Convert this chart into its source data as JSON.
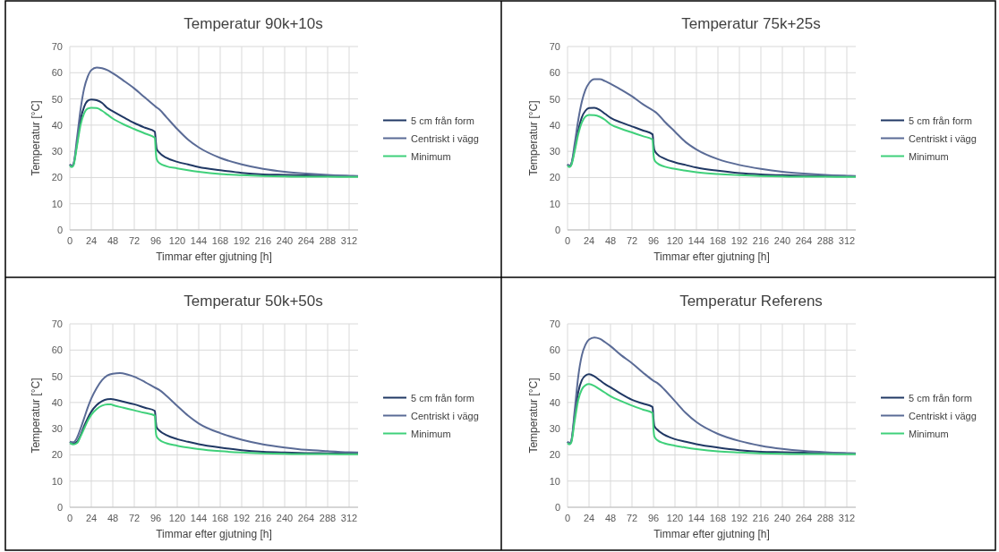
{
  "chart_data": [
    {
      "type": "line",
      "title": "Temperatur 90k+10s",
      "xlabel": "Timmar  efter gjutning  [h]",
      "ylabel": "Temperatur [°C]",
      "xlim": [
        0,
        322
      ],
      "xticks": [
        0,
        24,
        48,
        72,
        96,
        120,
        144,
        168,
        192,
        216,
        240,
        264,
        288,
        312
      ],
      "ylim": [
        0,
        70
      ],
      "yticks": [
        0,
        10,
        20,
        30,
        40,
        50,
        60,
        70
      ],
      "grid": true,
      "legend": "right",
      "series": [
        {
          "name": "5 cm från form",
          "color": "#203864",
          "x": [
            0,
            2,
            4,
            8,
            12,
            16,
            20,
            24,
            30,
            36,
            42,
            48,
            60,
            72,
            84,
            95,
            96,
            97,
            100,
            108,
            120,
            132,
            144,
            168,
            192,
            216,
            240,
            264,
            288,
            312,
            322
          ],
          "values": [
            25,
            24.3,
            25,
            33,
            42,
            47,
            49.3,
            49.8,
            49.5,
            48.5,
            46.5,
            45.3,
            43,
            40.8,
            39,
            37.5,
            34,
            31,
            29.5,
            27.5,
            26,
            25,
            24,
            22.8,
            21.8,
            21.2,
            21,
            20.8,
            20.6,
            20.5,
            20.5
          ]
        },
        {
          "name": "Centriskt i vägg",
          "color": "#5a6b96",
          "x": [
            0,
            2,
            4,
            8,
            12,
            16,
            20,
            24,
            30,
            36,
            42,
            48,
            60,
            72,
            84,
            96,
            100,
            108,
            120,
            132,
            144,
            168,
            192,
            216,
            240,
            264,
            288,
            312,
            322
          ],
          "values": [
            25,
            24.5,
            25,
            35,
            46,
            54,
            58.5,
            61,
            62,
            61.7,
            61,
            59.8,
            57,
            54,
            50.5,
            47,
            46,
            43,
            38.5,
            34.5,
            31.5,
            27.5,
            25,
            23.3,
            22.2,
            21.5,
            21,
            20.7,
            20.6
          ]
        },
        {
          "name": "Minimum",
          "color": "#3fd07a",
          "x": [
            0,
            2,
            4,
            8,
            12,
            16,
            20,
            24,
            30,
            36,
            42,
            48,
            60,
            72,
            84,
            95,
            96,
            97,
            100,
            108,
            120,
            132,
            144,
            168,
            192,
            216,
            240,
            264,
            288,
            312,
            322
          ],
          "values": [
            24.5,
            24,
            24.5,
            32,
            40,
            44.5,
            46.3,
            46.6,
            46.5,
            45.5,
            44,
            42.5,
            40.3,
            38.5,
            36.8,
            35.2,
            30,
            27,
            25.5,
            24.3,
            23.5,
            22.8,
            22.2,
            21.3,
            20.9,
            20.6,
            20.4,
            20.3,
            20.3,
            20.2,
            20.2
          ]
        }
      ]
    },
    {
      "type": "line",
      "title": "Temperatur 75k+25s",
      "xlabel": "Timmar  efter gjutning  [h]",
      "ylabel": "Temperatur [°C]",
      "xlim": [
        0,
        322
      ],
      "xticks": [
        0,
        24,
        48,
        72,
        96,
        120,
        144,
        168,
        192,
        216,
        240,
        264,
        288,
        312
      ],
      "ylim": [
        0,
        70
      ],
      "yticks": [
        0,
        10,
        20,
        30,
        40,
        50,
        60,
        70
      ],
      "grid": true,
      "legend": "right",
      "series": [
        {
          "name": "5 cm från form",
          "color": "#203864",
          "x": [
            0,
            2,
            4,
            8,
            12,
            16,
            20,
            24,
            30,
            36,
            42,
            48,
            60,
            72,
            84,
            95,
            96,
            97,
            100,
            108,
            120,
            132,
            144,
            168,
            192,
            216,
            240,
            264,
            288,
            312,
            322
          ],
          "values": [
            25,
            24.3,
            25,
            31,
            38,
            43,
            45.5,
            46.5,
            46.6,
            45.8,
            44.3,
            42.8,
            41,
            39.5,
            38,
            36.5,
            33,
            30.5,
            29,
            27.3,
            25.8,
            24.8,
            23.8,
            22.6,
            21.7,
            21.2,
            20.9,
            20.7,
            20.6,
            20.5,
            20.5
          ]
        },
        {
          "name": "Centriskt i vägg",
          "color": "#5a6b96",
          "x": [
            0,
            2,
            4,
            8,
            12,
            16,
            20,
            24,
            30,
            36,
            42,
            48,
            60,
            72,
            84,
            96,
            100,
            108,
            120,
            132,
            144,
            168,
            192,
            216,
            240,
            264,
            288,
            312,
            322
          ],
          "values": [
            25,
            24.5,
            25,
            33,
            42,
            49,
            53.5,
            56,
            57.5,
            57.5,
            56.8,
            55.8,
            53.5,
            51,
            48,
            45.5,
            44.5,
            41.5,
            37.5,
            33.5,
            30.7,
            27,
            24.8,
            23.3,
            22.2,
            21.5,
            21,
            20.7,
            20.6
          ]
        },
        {
          "name": "Minimum",
          "color": "#3fd07a",
          "x": [
            0,
            2,
            4,
            8,
            12,
            16,
            20,
            24,
            30,
            36,
            42,
            48,
            60,
            72,
            84,
            95,
            96,
            97,
            100,
            108,
            120,
            132,
            144,
            168,
            192,
            216,
            240,
            264,
            288,
            312,
            322
          ],
          "values": [
            24.5,
            24,
            24.5,
            30,
            36.5,
            41,
            43.3,
            43.9,
            43.8,
            43.2,
            42,
            40.3,
            38.6,
            37.2,
            35.8,
            34.5,
            29,
            26.8,
            25.5,
            24.2,
            23.3,
            22.6,
            22,
            21.3,
            20.9,
            20.6,
            20.4,
            20.3,
            20.3,
            20.2,
            20.2
          ]
        }
      ]
    },
    {
      "type": "line",
      "title": "Temperatur 50k+50s",
      "xlabel": "Timmar  efter gjutning  [h]",
      "ylabel": "Temperatur [°C]",
      "xlim": [
        0,
        322
      ],
      "xticks": [
        0,
        24,
        48,
        72,
        96,
        120,
        144,
        168,
        192,
        216,
        240,
        264,
        288,
        312
      ],
      "ylim": [
        0,
        70
      ],
      "yticks": [
        0,
        10,
        20,
        30,
        40,
        50,
        60,
        70
      ],
      "grid": true,
      "legend": "right",
      "series": [
        {
          "name": "5 cm från form",
          "color": "#203864",
          "x": [
            0,
            4,
            8,
            12,
            16,
            20,
            24,
            30,
            36,
            42,
            46,
            48,
            60,
            72,
            84,
            95,
            96,
            97,
            100,
            108,
            120,
            132,
            144,
            168,
            192,
            216,
            240,
            264,
            288,
            312,
            322
          ],
          "values": [
            25,
            24.3,
            25,
            27.5,
            31,
            34,
            36.5,
            39,
            40.5,
            41.2,
            41.3,
            41.2,
            40.3,
            39.3,
            38,
            36.8,
            33,
            30.5,
            29.3,
            27.5,
            26,
            25,
            24.1,
            22.8,
            21.8,
            21.2,
            20.9,
            20.7,
            20.6,
            20.5,
            20.5
          ]
        },
        {
          "name": "Centriskt i vägg",
          "color": "#5a6b96",
          "x": [
            0,
            4,
            8,
            12,
            16,
            20,
            24,
            30,
            36,
            42,
            48,
            56,
            64,
            72,
            84,
            96,
            100,
            108,
            120,
            132,
            144,
            168,
            192,
            216,
            240,
            264,
            288,
            312,
            322
          ],
          "values": [
            25,
            24.8,
            26.5,
            30,
            34,
            38,
            41.5,
            45.5,
            48.5,
            50.3,
            51,
            51.2,
            50.7,
            49.8,
            47.8,
            45.5,
            44.8,
            42.5,
            38.7,
            35,
            32,
            28.3,
            25.8,
            24,
            22.8,
            21.9,
            21.4,
            21,
            20.9
          ]
        },
        {
          "name": "Minimum",
          "color": "#3fd07a",
          "x": [
            0,
            4,
            8,
            12,
            16,
            20,
            24,
            30,
            36,
            42,
            46,
            48,
            60,
            72,
            84,
            95,
            96,
            97,
            100,
            108,
            120,
            132,
            144,
            168,
            192,
            216,
            240,
            264,
            288,
            312,
            322
          ],
          "values": [
            24.5,
            24,
            24.5,
            27,
            30,
            33,
            35.3,
            37.5,
            38.8,
            39.3,
            39.3,
            39,
            38,
            37,
            36,
            35,
            29,
            27,
            25.8,
            24.4,
            23.5,
            22.8,
            22.2,
            21.4,
            20.9,
            20.6,
            20.4,
            20.3,
            20.3,
            20.2,
            20.2
          ]
        }
      ]
    },
    {
      "type": "line",
      "title": "Temperatur Referens",
      "xlabel": "Timmar  efter gjutning  [h]",
      "ylabel": "Temperatur [°C]",
      "xlim": [
        0,
        322
      ],
      "xticks": [
        0,
        24,
        48,
        72,
        96,
        120,
        144,
        168,
        192,
        216,
        240,
        264,
        288,
        312
      ],
      "ylim": [
        0,
        70
      ],
      "yticks": [
        0,
        10,
        20,
        30,
        40,
        50,
        60,
        70
      ],
      "grid": true,
      "legend": "right",
      "series": [
        {
          "name": "5 cm från form",
          "color": "#203864",
          "x": [
            0,
            2,
            4,
            8,
            12,
            16,
            20,
            24,
            30,
            36,
            42,
            48,
            60,
            72,
            84,
            95,
            96,
            97,
            100,
            108,
            120,
            132,
            144,
            168,
            192,
            216,
            240,
            264,
            288,
            312,
            322
          ],
          "values": [
            25,
            24.3,
            25,
            35,
            44,
            48.5,
            50.3,
            50.8,
            50,
            48.5,
            47,
            45.8,
            43.2,
            41,
            39.6,
            38.3,
            34,
            31,
            29.7,
            27.7,
            26,
            25,
            24.1,
            22.8,
            21.8,
            21.2,
            21,
            20.8,
            20.6,
            20.5,
            20.5
          ]
        },
        {
          "name": "Centriskt i vägg",
          "color": "#5a6b96",
          "x": [
            0,
            2,
            4,
            8,
            12,
            16,
            20,
            24,
            30,
            36,
            42,
            48,
            60,
            72,
            84,
            96,
            100,
            108,
            120,
            132,
            144,
            168,
            192,
            216,
            240,
            264,
            288,
            312,
            322
          ],
          "values": [
            25,
            24.5,
            25,
            37,
            50,
            58,
            62,
            64,
            64.8,
            64.3,
            63,
            61.5,
            58,
            55,
            51.5,
            48.3,
            47.5,
            45,
            40.5,
            36,
            32.5,
            28,
            25.3,
            23.5,
            22.3,
            21.5,
            21,
            20.7,
            20.6
          ]
        },
        {
          "name": "Minimum",
          "color": "#3fd07a",
          "x": [
            0,
            2,
            4,
            8,
            12,
            16,
            20,
            24,
            30,
            36,
            42,
            48,
            60,
            72,
            84,
            95,
            96,
            97,
            100,
            108,
            120,
            132,
            144,
            168,
            192,
            216,
            240,
            264,
            288,
            312,
            322
          ],
          "values": [
            24.5,
            24,
            24.5,
            33,
            41,
            45,
            46.6,
            47,
            46.3,
            45,
            43.7,
            42.4,
            40.5,
            38.8,
            37.3,
            36,
            30,
            27,
            25.7,
            24.4,
            23.5,
            22.8,
            22.2,
            21.3,
            20.9,
            20.6,
            20.4,
            20.3,
            20.3,
            20.2,
            20.2
          ]
        }
      ]
    }
  ]
}
